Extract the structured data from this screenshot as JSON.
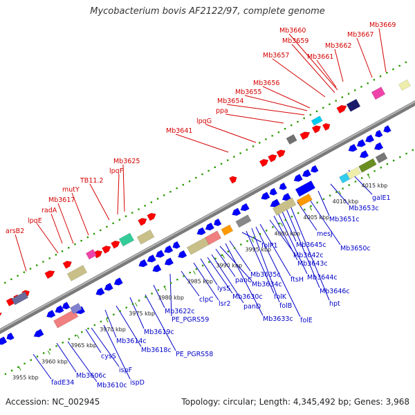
{
  "title": "Mycobacterium bovis AF2122/97, complete genome",
  "accession": "Accession: NC_002945",
  "summary": "Topology: circular; Length: 4,345,492 bp; Genes: 3,968",
  "colors": {
    "forward_label": "#d40000",
    "reverse_label": "#0000c8",
    "backbone": "#8a8a8a",
    "forward_gene": "#ff0000",
    "reverse_gene": "#0000ff",
    "track_dots": "#2a9a00"
  },
  "ticks": [
    "3955 kbp",
    "3960 kbp",
    "3965 kbp",
    "3970 kbp",
    "3975 kbp",
    "3980 kbp",
    "3985 kbp",
    "3990 kbp",
    "3995 kbp",
    "4000 kbp",
    "4005 kbp",
    "4010 kbp",
    "4015 kbp"
  ],
  "top_labels": [
    "arsB2",
    "lpqE",
    "radA",
    "Mb3617",
    "mutY",
    "TB11.2",
    "lpqF",
    "Mb3625",
    "Mb3641",
    "lpqG",
    "ppa",
    "Mb3654",
    "Mb3655",
    "Mb3656",
    "Mb3657",
    "Mb3659",
    "Mb3660",
    "Mb3661",
    "Mb3662",
    "Mb3667",
    "Mb3669"
  ],
  "bottom_labels": [
    "fadE34",
    "Mb3606c",
    "Mb3610c",
    "cysS",
    "ispF",
    "ispD",
    "Mb3614c",
    "Mb3618c",
    "Mb3619c",
    "PE_PGRS58",
    "Mb3622c",
    "PE_PGRS59",
    "clpC",
    "lsr2",
    "lysS",
    "Mb3630c",
    "panD",
    "panC",
    "Mb3634c",
    "Mb3633c",
    "Mb3635c",
    "folP1",
    "folK",
    "folB",
    "folE",
    "ftsH",
    "Mb3642c",
    "Mb3643c",
    "Mb3644c",
    "Mb3645c",
    "Mb3646c",
    "hpt",
    "mesJ",
    "Mb3650c",
    "Mb3651c",
    "Mb3653c",
    "galE1"
  ]
}
